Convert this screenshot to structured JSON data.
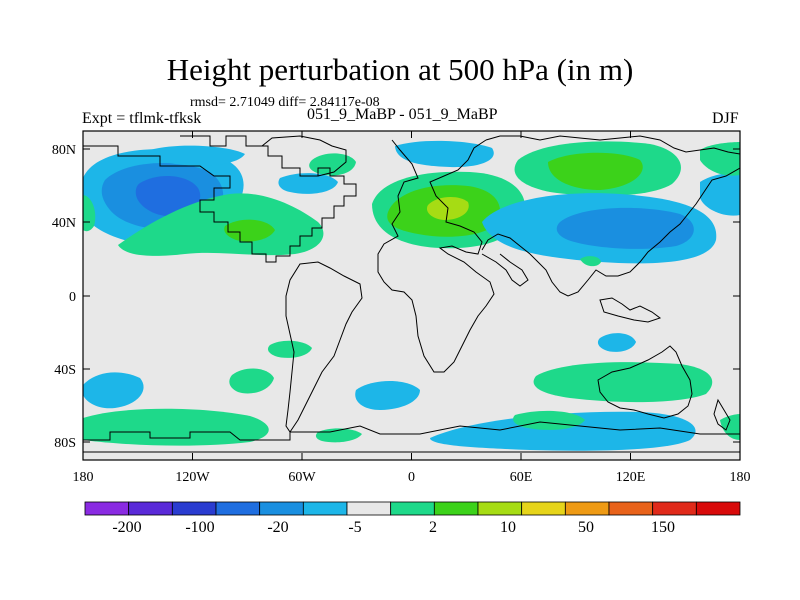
{
  "title": "Height perturbation at 500 hPa (in m)",
  "stats_line": "rmsd= 2.71049 diff= 2.84117e-08",
  "left_label": "Expt = tflmk-tfksk",
  "center_label": "051_9_MaBP - 051_9_MaBP",
  "right_label": "DJF",
  "lat_ticks": [
    "80N",
    "40N",
    "0",
    "40S",
    "80S"
  ],
  "lon_ticks": [
    "180",
    "120W",
    "60W",
    "0",
    "60E",
    "120E",
    "180"
  ],
  "colorbar": {
    "colors": [
      "#8a2be2",
      "#5a2ad8",
      "#2a3cd0",
      "#1f6ee0",
      "#1a8fe0",
      "#1db6e8",
      "#e8e8e8",
      "#1ed98a",
      "#3cd21a",
      "#a6dc14",
      "#e6d41a",
      "#ee9a14",
      "#e8621a",
      "#e02a1a",
      "#d80a0a"
    ],
    "labels": [
      "-200",
      "-100",
      "-20",
      "-5",
      "2",
      "10",
      "50",
      "150"
    ]
  },
  "legend_colors": {
    "land_fill": "#e8e8e8",
    "coast": "#000000"
  }
}
